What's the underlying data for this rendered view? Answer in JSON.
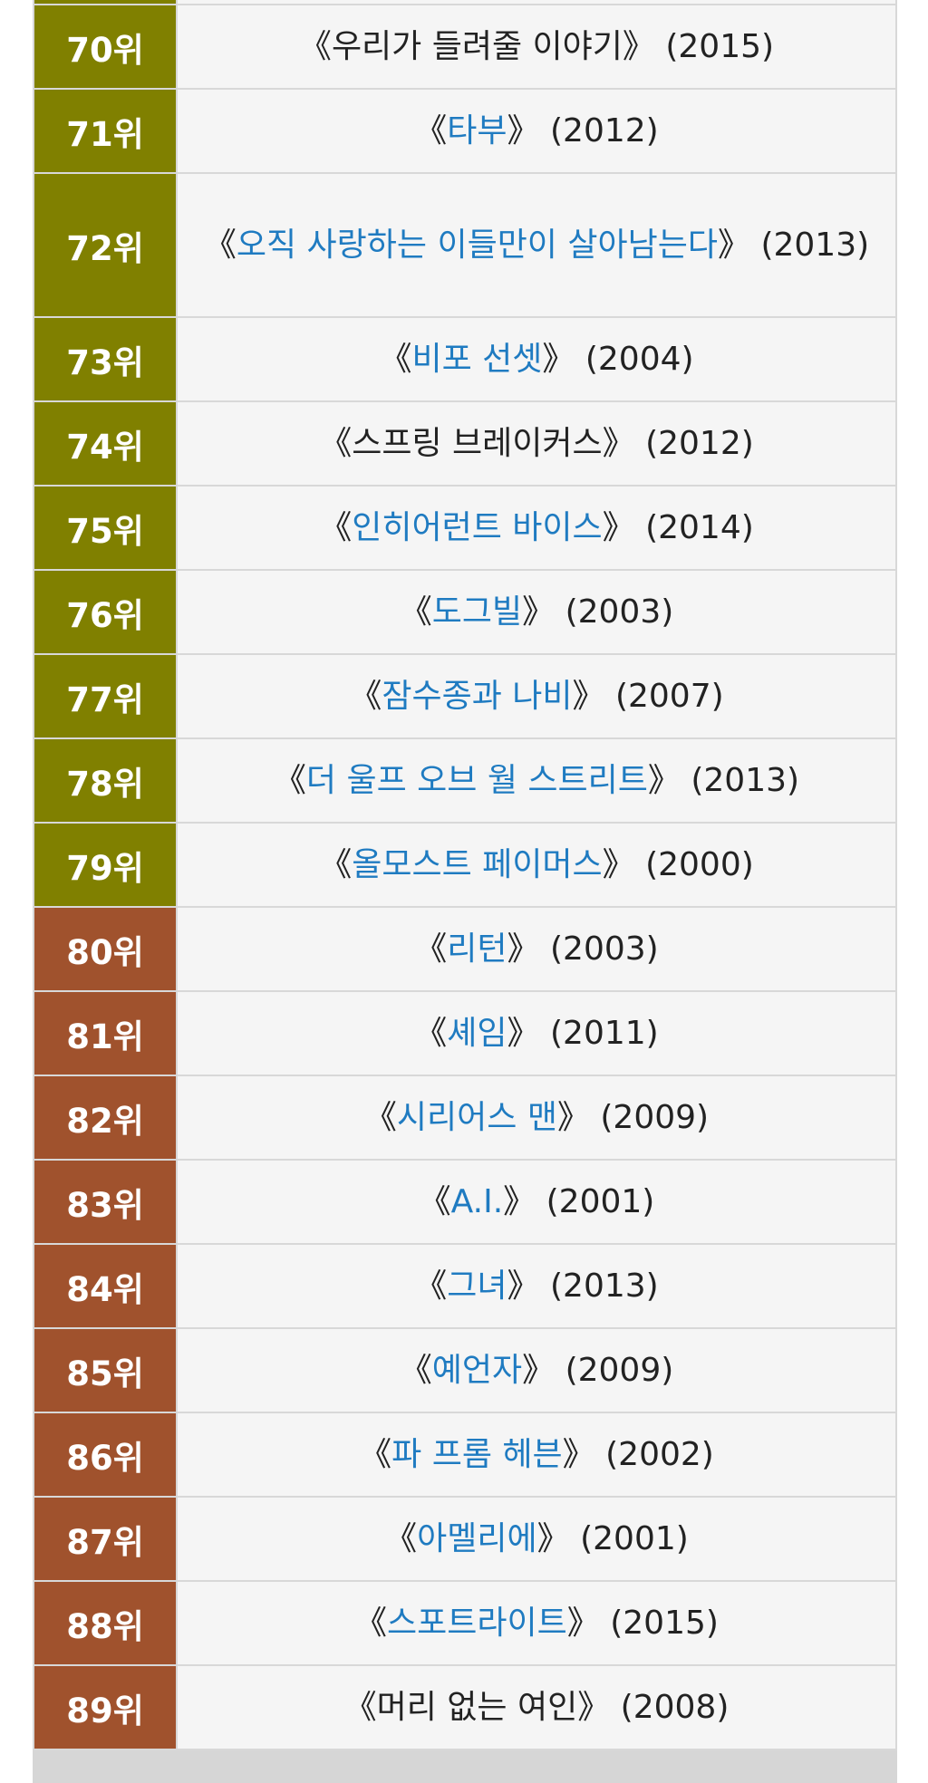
{
  "rows": [
    {
      "rank": "70위",
      "title": "우리가 들려줄 이야기",
      "year": "(2015)",
      "linked": false
    },
    {
      "rank": "71위",
      "title": "타부",
      "year": "(2012)",
      "linked": true
    },
    {
      "rank": "72위",
      "title": "오직 사랑하는 이들만이 살아남는다",
      "year": "(2013)",
      "linked": true
    },
    {
      "rank": "73위",
      "title": "비포 선셋",
      "year": "(2004)",
      "linked": true
    },
    {
      "rank": "74위",
      "title": "스프링 브레이커스",
      "year": "(2012)",
      "linked": false
    },
    {
      "rank": "75위",
      "title": "인히어런트 바이스",
      "year": "(2014)",
      "linked": true
    },
    {
      "rank": "76위",
      "title": "도그빌",
      "year": "(2003)",
      "linked": true
    },
    {
      "rank": "77위",
      "title": "잠수종과 나비",
      "year": "(2007)",
      "linked": true
    },
    {
      "rank": "78위",
      "title": "더 울프 오브 월 스트리트",
      "year": "(2013)",
      "linked": true
    },
    {
      "rank": "79위",
      "title": "올모스트 페이머스",
      "year": "(2000)",
      "linked": true
    },
    {
      "rank": "80위",
      "title": "리턴",
      "year": "(2003)",
      "linked": true
    },
    {
      "rank": "81위",
      "title": "셰임",
      "year": "(2011)",
      "linked": true
    },
    {
      "rank": "82위",
      "title": "시리어스 맨",
      "year": "(2009)",
      "linked": true
    },
    {
      "rank": "83위",
      "title": "A.I.",
      "year": "(2001)",
      "linked": true
    },
    {
      "rank": "84위",
      "title": "그녀",
      "year": "(2013)",
      "linked": true
    },
    {
      "rank": "85위",
      "title": "예언자",
      "year": "(2009)",
      "linked": true
    },
    {
      "rank": "86위",
      "title": "파 프롬 헤븐",
      "year": "(2002)",
      "linked": true
    },
    {
      "rank": "87위",
      "title": "아멜리에",
      "year": "(2001)",
      "linked": true
    },
    {
      "rank": "88위",
      "title": "스포트라이트",
      "year": "(2015)",
      "linked": true
    },
    {
      "rank": "89위",
      "title": "머리 없는 여인",
      "year": "(2008)",
      "linked": false
    }
  ],
  "colors": {
    "rank_70s": "#808000",
    "rank_80s": "#a0522d",
    "link": "#1f7bc1",
    "title_bg": "#f5f5f5"
  }
}
